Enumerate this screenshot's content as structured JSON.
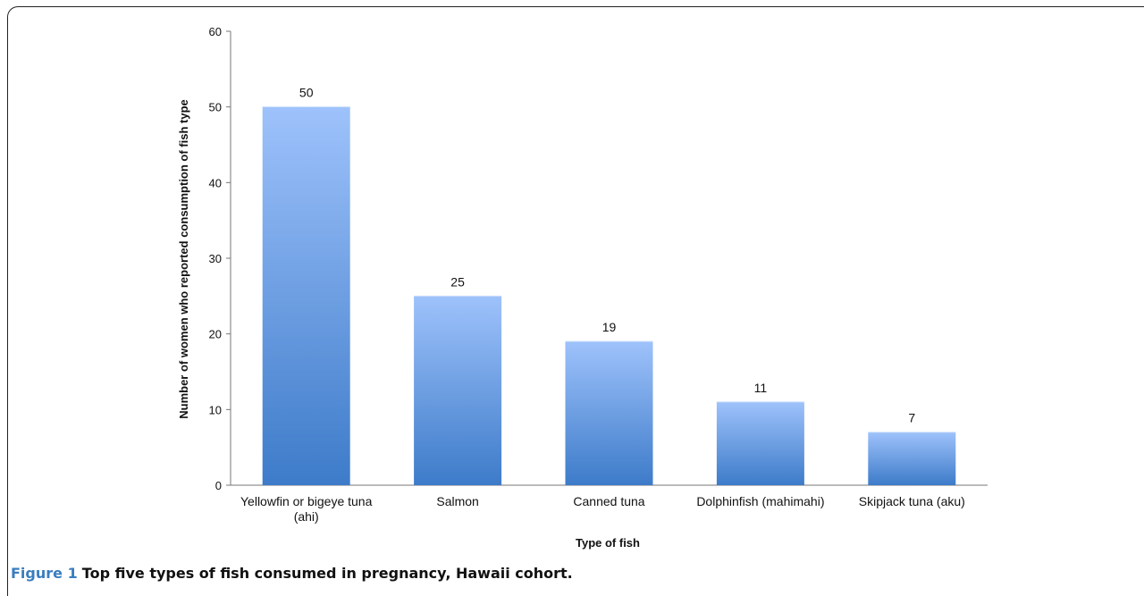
{
  "chart_data": {
    "type": "bar",
    "categories": [
      [
        "Yellowfin or bigeye tuna",
        "(ahi)"
      ],
      [
        "Salmon"
      ],
      [
        "Canned tuna"
      ],
      [
        "Dolphinfish (mahimahi)"
      ],
      [
        "Skipjack tuna (aku)"
      ]
    ],
    "values": [
      50,
      25,
      19,
      11,
      7
    ],
    "data_labels": [
      "50",
      "25",
      "19",
      "11",
      "7"
    ],
    "ylim": [
      0,
      60
    ],
    "yticks": [
      "0",
      "10",
      "20",
      "30",
      "40",
      "50",
      "60"
    ],
    "xlabel": "Type of fish",
    "ylabel": "Number of women who reported consumption of fish type",
    "legend": "none",
    "grid": false,
    "colors": {
      "bar_top": "#9ec2fb",
      "bar_bottom": "#3d7bc9"
    }
  },
  "caption": {
    "label": "Figure 1",
    "text": "Top five types of fish consumed in pregnancy, Hawaii cohort."
  }
}
